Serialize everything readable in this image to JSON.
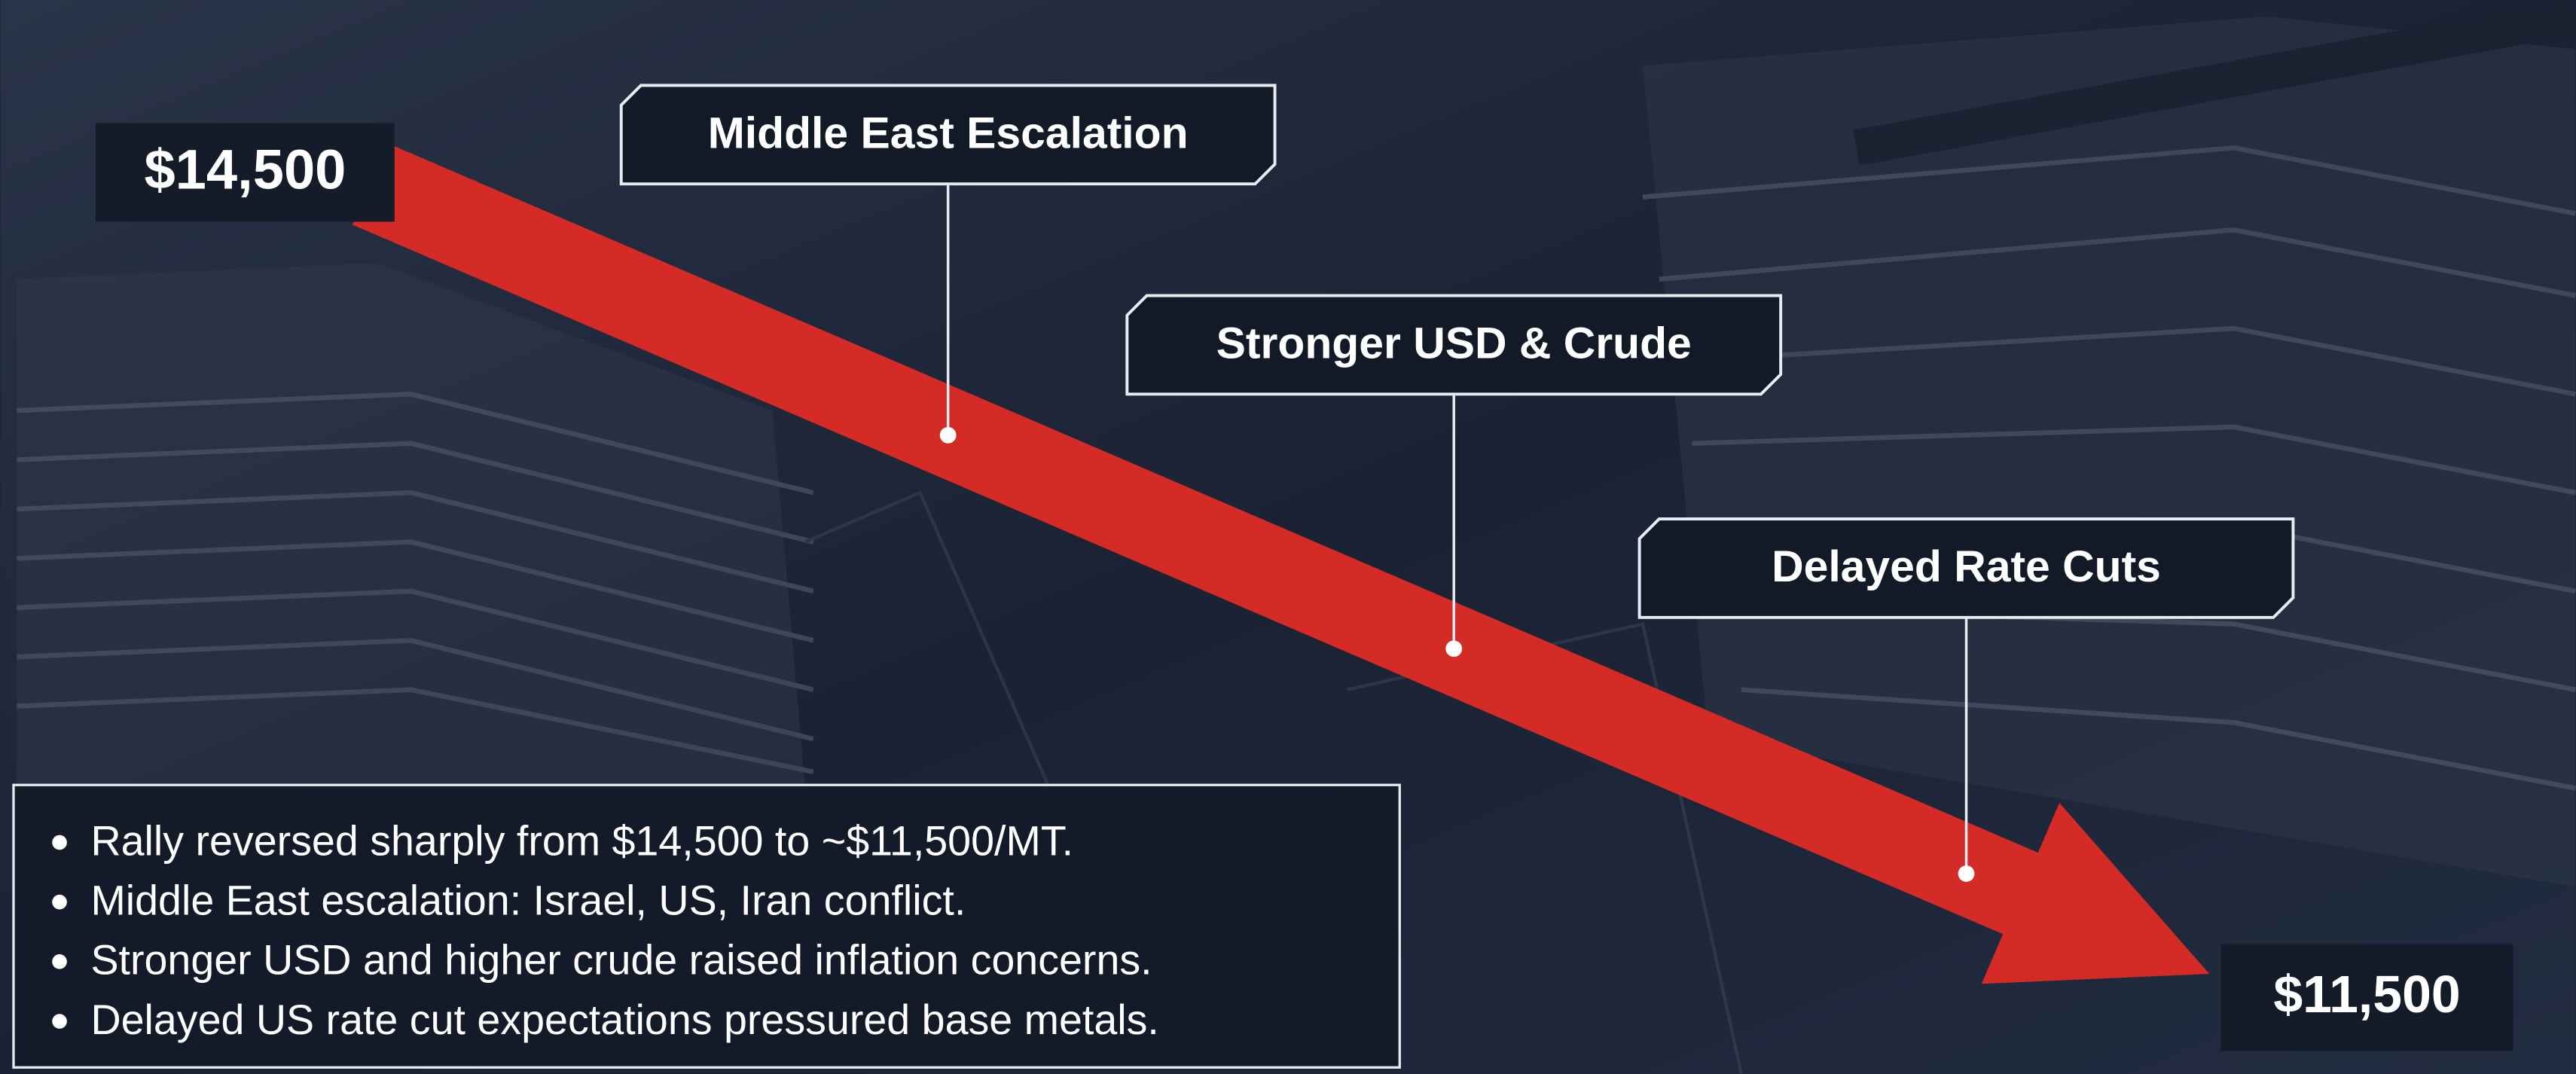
{
  "start_price": "$14,500",
  "end_price": "$11,500",
  "events": [
    {
      "label": "Middle East Escalation"
    },
    {
      "label": "Stronger USD & Crude"
    },
    {
      "label": "Delayed Rate Cuts"
    }
  ],
  "bullets": [
    "Rally reversed sharply from $14,500 to ~$11,500/MT.",
    "Middle East escalation: Israel, US, Iran conflict.",
    "Stronger USD and higher crude raised inflation concerns.",
    "Delayed US rate cut expectations pressured base metals."
  ]
}
